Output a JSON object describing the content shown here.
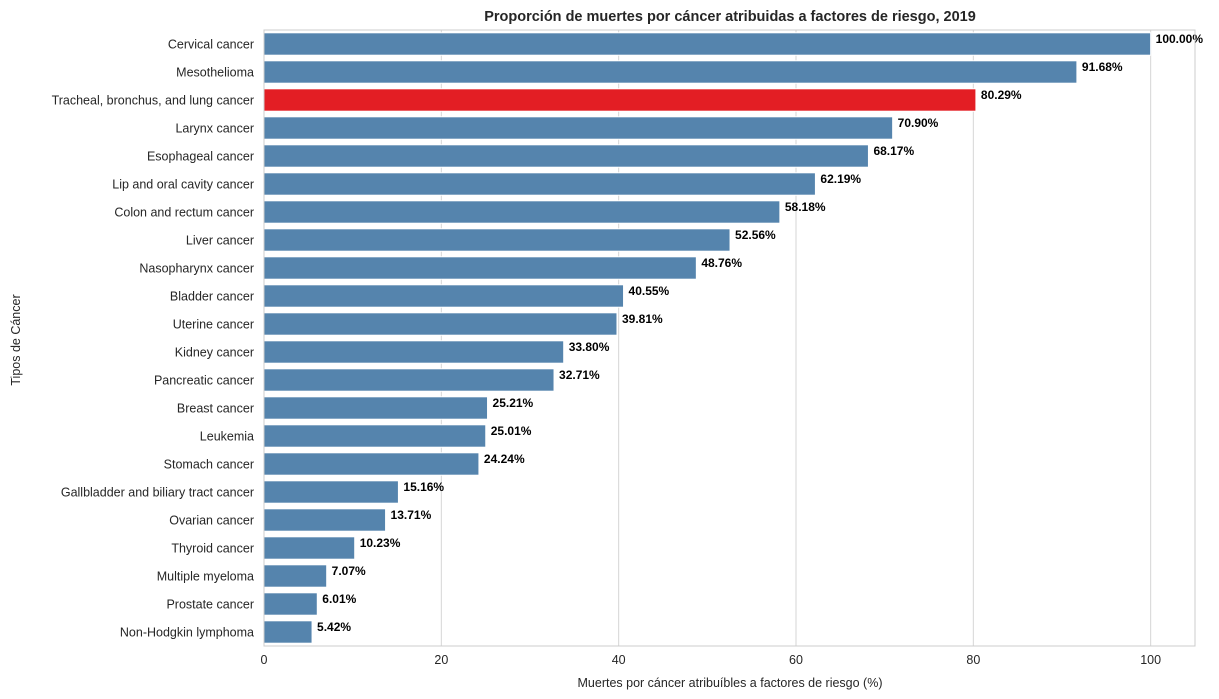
{
  "chart_data": {
    "type": "bar",
    "orientation": "horizontal",
    "title": "Proporción de muertes por cáncer atribuidas a factores de riesgo, 2019",
    "xlabel": "Muertes por cáncer atribuíbles a factores de riesgo (%)",
    "ylabel": "Tipos de Cáncer",
    "xlim": [
      0,
      105
    ],
    "xticks": [
      0,
      20,
      40,
      60,
      80,
      100
    ],
    "grid": true,
    "colors": {
      "default": "#5584ad",
      "highlight": "#e31e24"
    },
    "highlight_category": "Tracheal, bronchus, and lung cancer",
    "categories": [
      "Cervical cancer",
      "Mesothelioma",
      "Tracheal, bronchus, and lung cancer",
      "Larynx cancer",
      "Esophageal cancer",
      "Lip and oral cavity cancer",
      "Colon and rectum cancer",
      "Liver cancer",
      "Nasopharynx cancer",
      "Bladder cancer",
      "Uterine cancer",
      "Kidney cancer",
      "Pancreatic cancer",
      "Breast cancer",
      "Leukemia",
      "Stomach cancer",
      "Gallbladder and biliary tract cancer",
      "Ovarian cancer",
      "Thyroid cancer",
      "Multiple myeloma",
      "Prostate cancer",
      "Non-Hodgkin lymphoma"
    ],
    "values": [
      100.0,
      91.68,
      80.29,
      70.9,
      68.17,
      62.19,
      58.18,
      52.56,
      48.76,
      40.55,
      39.81,
      33.8,
      32.71,
      25.21,
      25.01,
      24.24,
      15.16,
      13.71,
      10.23,
      7.07,
      6.01,
      5.42
    ],
    "value_labels": [
      "100.00%",
      "91.68%",
      "80.29%",
      "70.90%",
      "68.17%",
      "62.19%",
      "58.18%",
      "52.56%",
      "48.76%",
      "40.55%",
      "39.81%",
      "33.80%",
      "32.71%",
      "25.21%",
      "25.01%",
      "24.24%",
      "15.16%",
      "13.71%",
      "10.23%",
      "7.07%",
      "6.01%",
      "5.42%"
    ]
  }
}
